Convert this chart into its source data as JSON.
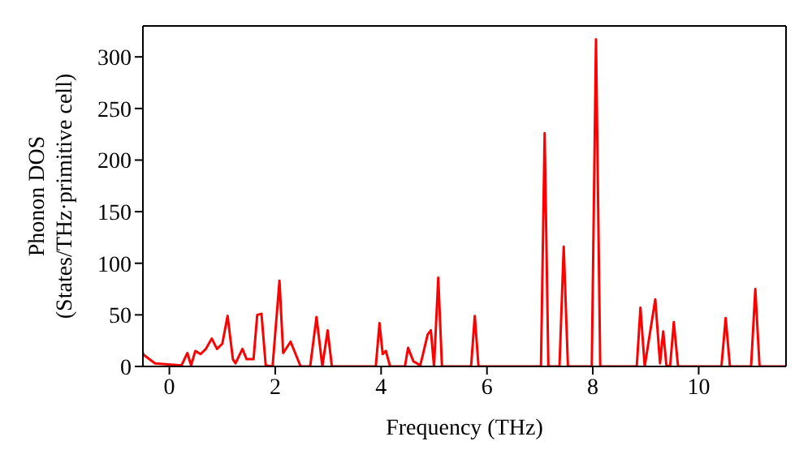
{
  "chart_data": {
    "type": "line",
    "xlabel": "Frequency (THz)",
    "ylabel": "Phonon DOS\n(States/THz·primitive cell)",
    "xlim": [
      -0.5,
      11.65
    ],
    "xticks": [
      0,
      2,
      4,
      6,
      8,
      10
    ],
    "ylim": [
      0,
      330
    ],
    "yticks": [
      0,
      50,
      100,
      150,
      200,
      250,
      300
    ],
    "marker": "none",
    "line_style": "solid",
    "series": [
      {
        "color": "#ff0000",
        "x": [
          -0.5,
          -0.48,
          -0.27,
          0.23,
          0.34,
          0.41,
          0.49,
          0.59,
          0.69,
          0.8,
          0.9,
          1.0,
          1.1,
          1.2,
          1.25,
          1.38,
          1.46,
          1.59,
          1.66,
          1.74,
          1.82,
          1.95,
          2.08,
          2.15,
          2.29,
          2.48,
          2.66,
          2.78,
          2.89,
          2.99,
          3.07,
          3.9,
          3.97,
          4.03,
          4.09,
          4.17,
          4.45,
          4.51,
          4.61,
          4.74,
          4.88,
          4.94,
          5.0,
          5.08,
          5.15,
          5.7,
          5.77,
          5.84,
          7.02,
          7.09,
          7.16,
          7.37,
          7.45,
          7.53,
          7.98,
          8.06,
          8.14,
          8.83,
          8.9,
          8.98,
          9.18,
          9.27,
          9.33,
          9.39,
          9.46,
          9.53,
          9.61,
          10.43,
          10.51,
          10.59,
          10.99,
          11.07,
          11.15,
          11.65
        ],
        "values": [
          13,
          11,
          3,
          1,
          13,
          1,
          15,
          12,
          17,
          27,
          17,
          22,
          49,
          7,
          3,
          17,
          7,
          7,
          50,
          51,
          1,
          0,
          83,
          13,
          24,
          0,
          0,
          48,
          0,
          35,
          0,
          0,
          42,
          12,
          15,
          0,
          0,
          18,
          5,
          1,
          31,
          35,
          0,
          86,
          0,
          0,
          49,
          0,
          0,
          226,
          0,
          0,
          116,
          0,
          0,
          317,
          0,
          0,
          57,
          0,
          65,
          3,
          34,
          1,
          0,
          43,
          0,
          0,
          47,
          0,
          0,
          75,
          0,
          0
        ]
      }
    ]
  }
}
